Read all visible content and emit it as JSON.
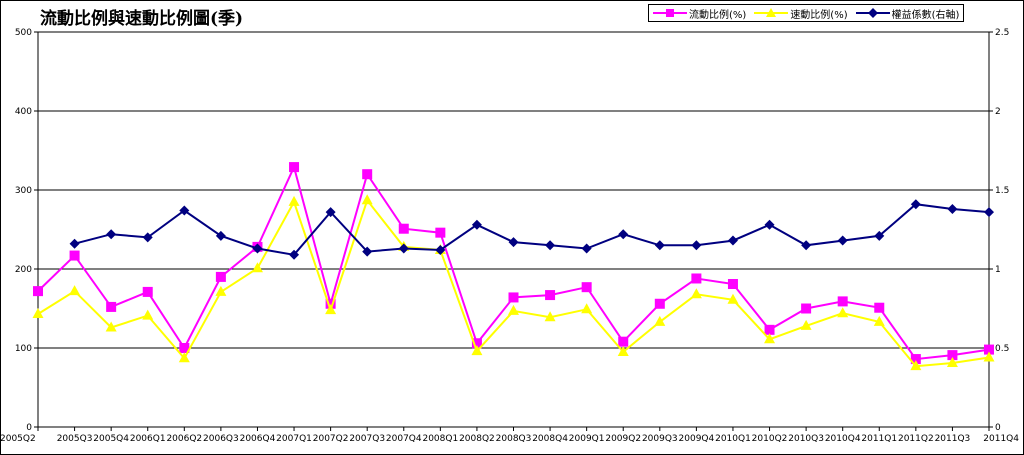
{
  "chart_data": {
    "type": "line",
    "title": "流動比例與速動比例圖(季)",
    "categories": [
      "2005Q2",
      "2005Q3",
      "2005Q4",
      "2006Q1",
      "2006Q2",
      "2006Q3",
      "2006Q4",
      "2007Q1",
      "2007Q2",
      "2007Q3",
      "2007Q4",
      "2008Q1",
      "2008Q2",
      "2008Q3",
      "2008Q4",
      "2009Q1",
      "2009Q2",
      "2009Q3",
      "2009Q4",
      "2010Q1",
      "2010Q2",
      "2010Q3",
      "2010Q4",
      "2011Q1",
      "2011Q2",
      "2011Q3",
      "2011Q4"
    ],
    "y_left": {
      "ticks": [
        "0",
        "100",
        "200",
        "300",
        "400",
        "500"
      ],
      "ylim": [
        0,
        500
      ]
    },
    "y_right": {
      "ticks": [
        "0",
        "0.5",
        "1",
        "1.5",
        "2",
        "2.5"
      ],
      "ylim": [
        0,
        2.5
      ]
    },
    "grid": true,
    "legend_position": "top-right",
    "series": [
      {
        "name": "流動比例(%)",
        "axis": "left",
        "color": "#FF00FF",
        "marker": "square",
        "values": [
          172,
          217,
          152,
          171,
          100,
          190,
          228,
          329,
          156,
          320,
          251,
          246,
          106,
          164,
          167,
          177,
          108,
          156,
          188,
          181,
          123,
          150,
          159,
          151,
          86,
          91,
          98
        ]
      },
      {
        "name": "速動比例(%)",
        "axis": "left",
        "color": "#FFFF00",
        "marker": "triangle",
        "values": [
          143,
          172,
          126,
          141,
          87,
          171,
          201,
          285,
          148,
          287,
          228,
          224,
          96,
          147,
          139,
          149,
          95,
          133,
          168,
          161,
          111,
          128,
          144,
          133,
          77,
          81,
          88
        ]
      },
      {
        "name": "權益係數(右軸)",
        "axis": "right",
        "color": "#000080",
        "marker": "diamond",
        "values": [
          null,
          1.16,
          1.22,
          1.2,
          1.37,
          1.21,
          1.13,
          1.09,
          1.36,
          1.11,
          1.13,
          1.12,
          1.28,
          1.17,
          1.15,
          1.13,
          1.22,
          1.15,
          1.15,
          1.18,
          1.28,
          1.15,
          1.18,
          1.21,
          1.41,
          1.38,
          1.36
        ]
      }
    ]
  }
}
